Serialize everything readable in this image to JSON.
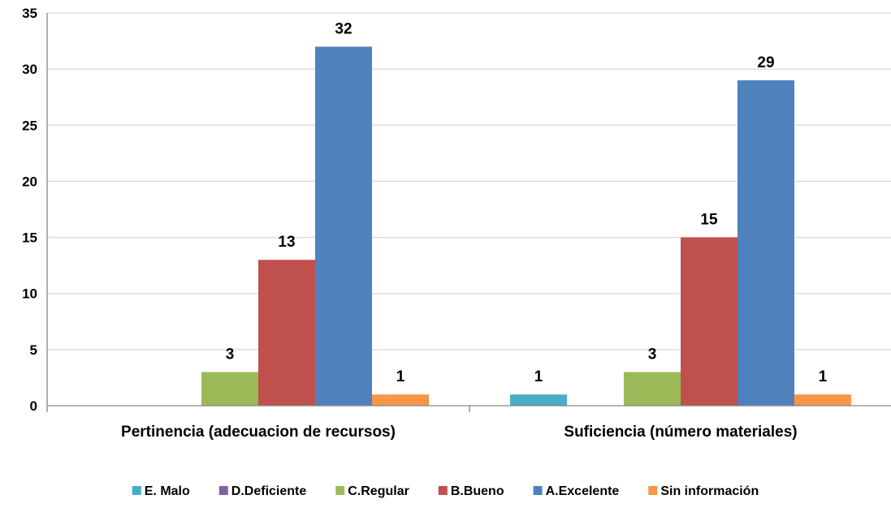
{
  "chart_data": {
    "type": "bar",
    "title": "",
    "xlabel": "",
    "ylabel": "",
    "ylim": [
      0,
      35
    ],
    "yticks": [
      0,
      5,
      10,
      15,
      20,
      25,
      30,
      35
    ],
    "grid": true,
    "legend_position": "bottom",
    "categories": [
      "Pertinencia (adecuacion de recursos)",
      "Suficiencia (número materiales)"
    ],
    "series": [
      {
        "name": "E. Malo",
        "color": "#4bacc6",
        "values": [
          0,
          1
        ]
      },
      {
        "name": "D.Deficiente",
        "color": "#8064a2",
        "values": [
          0,
          0
        ]
      },
      {
        "name": "C.Regular",
        "color": "#9bbb59",
        "values": [
          3,
          3
        ]
      },
      {
        "name": "B.Bueno",
        "color": "#c0504d",
        "values": [
          13,
          15
        ]
      },
      {
        "name": "A.Excelente",
        "color": "#4f81bd",
        "values": [
          32,
          29
        ]
      },
      {
        "name": "Sin información",
        "color": "#f79646",
        "values": [
          1,
          1
        ]
      }
    ]
  }
}
